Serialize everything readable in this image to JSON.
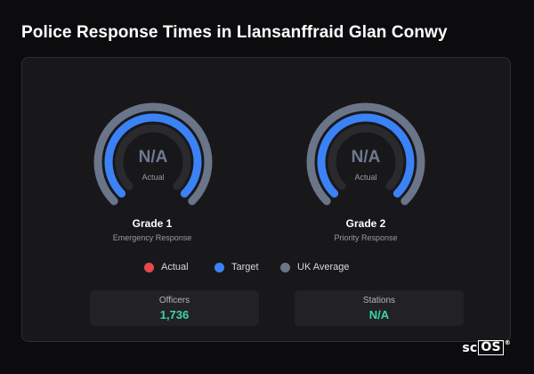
{
  "page": {
    "title": "Police Response Times in Llansanffraid Glan Conwy"
  },
  "gauges": [
    {
      "value": "N/A",
      "value_label": "Actual",
      "grade": "Grade 1",
      "grade_description": "Emergency Response",
      "target_fraction": 0.75,
      "uk_average_fraction": 0.75
    },
    {
      "value": "N/A",
      "value_label": "Actual",
      "grade": "Grade 2",
      "grade_description": "Priority Response",
      "target_fraction": 0.75,
      "uk_average_fraction": 0.75
    }
  ],
  "legend": [
    {
      "label": "Actual",
      "color": "#e5484d"
    },
    {
      "label": "Target",
      "color": "#3b82f6"
    },
    {
      "label": "UK Average",
      "color": "#6b7589"
    }
  ],
  "stats": {
    "officers": {
      "label": "Officers",
      "value": "1,736"
    },
    "stations": {
      "label": "Stations",
      "value": "N/A"
    }
  },
  "logo": {
    "prefix": "sc",
    "boxed": "OS",
    "mark": "®"
  },
  "colors": {
    "background": "#0c0c0e",
    "card": "#18181b",
    "target": "#3b82f6",
    "uk_average": "#6b7589",
    "actual_track": "#2a2a2e",
    "stat_value": "#3fd4a4"
  }
}
